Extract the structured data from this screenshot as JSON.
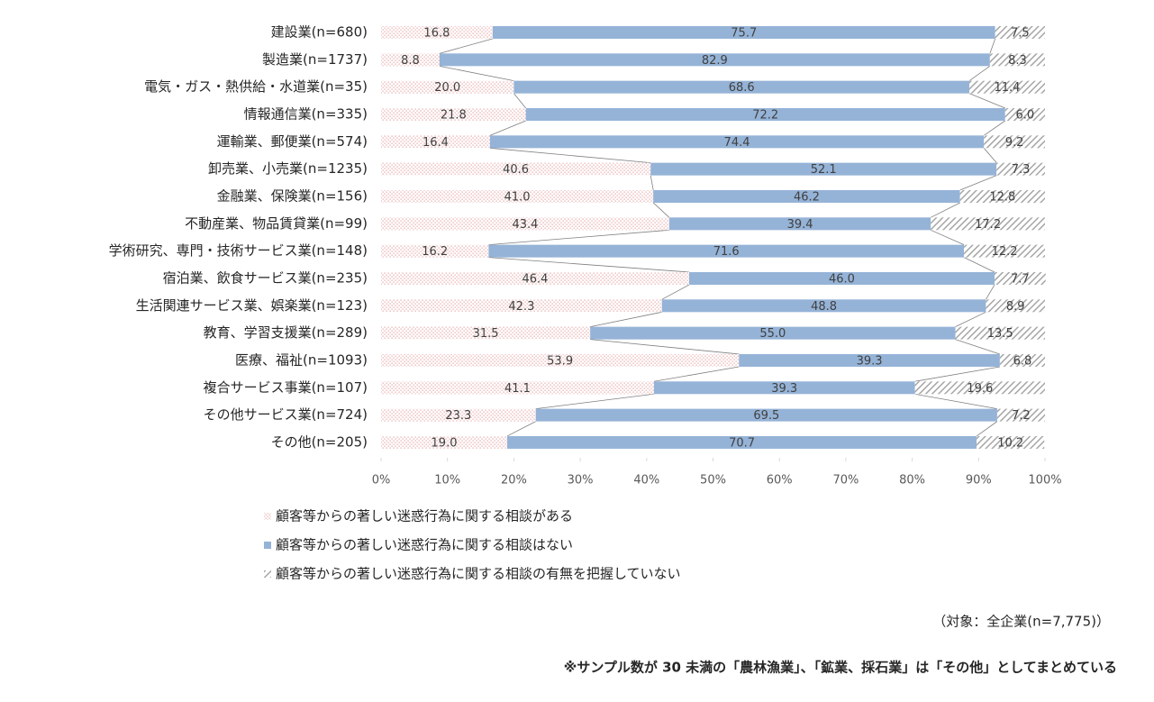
{
  "chart_data": {
    "type": "stacked-bar-100",
    "categories": [
      "建設業(n=680)",
      "製造業(n=1737)",
      "電気・ガス・熱供給・水道業(n=35)",
      "情報通信業(n=335)",
      "運輸業、郵便業(n=574)",
      "卸売業、小売業(n=1235)",
      "金融業、保険業(n=156)",
      "不動産業、物品賃貸業(n=99)",
      "学術研究、専門・技術サービス業(n=148)",
      "宿泊業、飲食サービス業(n=235)",
      "生活関連サービス業、娯楽業(n=123)",
      "教育、学習支援業(n=289)",
      "医療、福祉(n=1093)",
      "複合サービス事業(n=107)",
      "その他サービス業(n=724)",
      "その他(n=205)"
    ],
    "series": [
      {
        "name": "顧客等からの著しい迷惑行為に関する相談がある",
        "color": "#e39a9a",
        "pattern": "dots",
        "values": [
          16.8,
          8.8,
          20.0,
          21.8,
          16.4,
          40.6,
          41.0,
          43.4,
          16.2,
          46.4,
          42.3,
          31.5,
          53.9,
          41.1,
          23.3,
          19.0
        ],
        "value_labels": [
          "16.8",
          "8.8",
          "20.0",
          "21.8",
          "16.4",
          "40.6",
          "41.0",
          "43.4",
          "16.2",
          "46.4",
          "42.3",
          "31.5",
          "53.9",
          "41.1",
          "23.3",
          "19.0"
        ]
      },
      {
        "name": "顧客等からの著しい迷惑行為に関する相談はない",
        "color": "#95b3d7",
        "pattern": "solid",
        "values": [
          75.7,
          82.9,
          68.6,
          72.2,
          74.4,
          52.1,
          46.2,
          39.4,
          71.6,
          46.0,
          48.8,
          55.0,
          39.3,
          39.3,
          69.5,
          70.7
        ],
        "value_labels": [
          "75.7",
          "82.9",
          "68.6",
          "72.2",
          "74.4",
          "52.1",
          "46.2",
          "39.4",
          "71.6",
          "46.0",
          "48.8",
          "55.0",
          "39.3",
          "39.3",
          "69.5",
          "70.7"
        ]
      },
      {
        "name": "顧客等からの著しい迷惑行為に関する相談の有無を把握していない",
        "color": "#a6a6a6",
        "pattern": "hatch",
        "values": [
          7.5,
          8.3,
          11.4,
          6.0,
          9.2,
          7.3,
          12.8,
          17.2,
          12.2,
          7.7,
          8.9,
          13.5,
          6.8,
          19.6,
          7.2,
          10.2
        ],
        "value_labels": [
          "7.5",
          "8.3",
          "11.4",
          "6.0",
          "9.2",
          "7.3",
          "12.8",
          "17.2",
          "12.2",
          "7.7",
          "8.9",
          "13.5",
          "6.8",
          "19.6",
          "7.2",
          "10.2"
        ]
      }
    ],
    "xlim": [
      0,
      100
    ],
    "xticks": [
      {
        "value": 0,
        "label": "0%"
      },
      {
        "value": 10,
        "label": "10%"
      },
      {
        "value": 20,
        "label": "20%"
      },
      {
        "value": 30,
        "label": "30%"
      },
      {
        "value": 40,
        "label": "40%"
      },
      {
        "value": 50,
        "label": "50%"
      },
      {
        "value": 60,
        "label": "60%"
      },
      {
        "value": 70,
        "label": "70%"
      },
      {
        "value": 80,
        "label": "80%"
      },
      {
        "value": 90,
        "label": "90%"
      },
      {
        "value": 100,
        "label": "100%"
      }
    ],
    "series_lines": true,
    "annotations": [
      "（対象：全企業(n=7,775)）",
      "※サンプル数が 30 未満の「農林漁業」、「鉱業、採石業」は「その他」としてまとめている"
    ]
  }
}
